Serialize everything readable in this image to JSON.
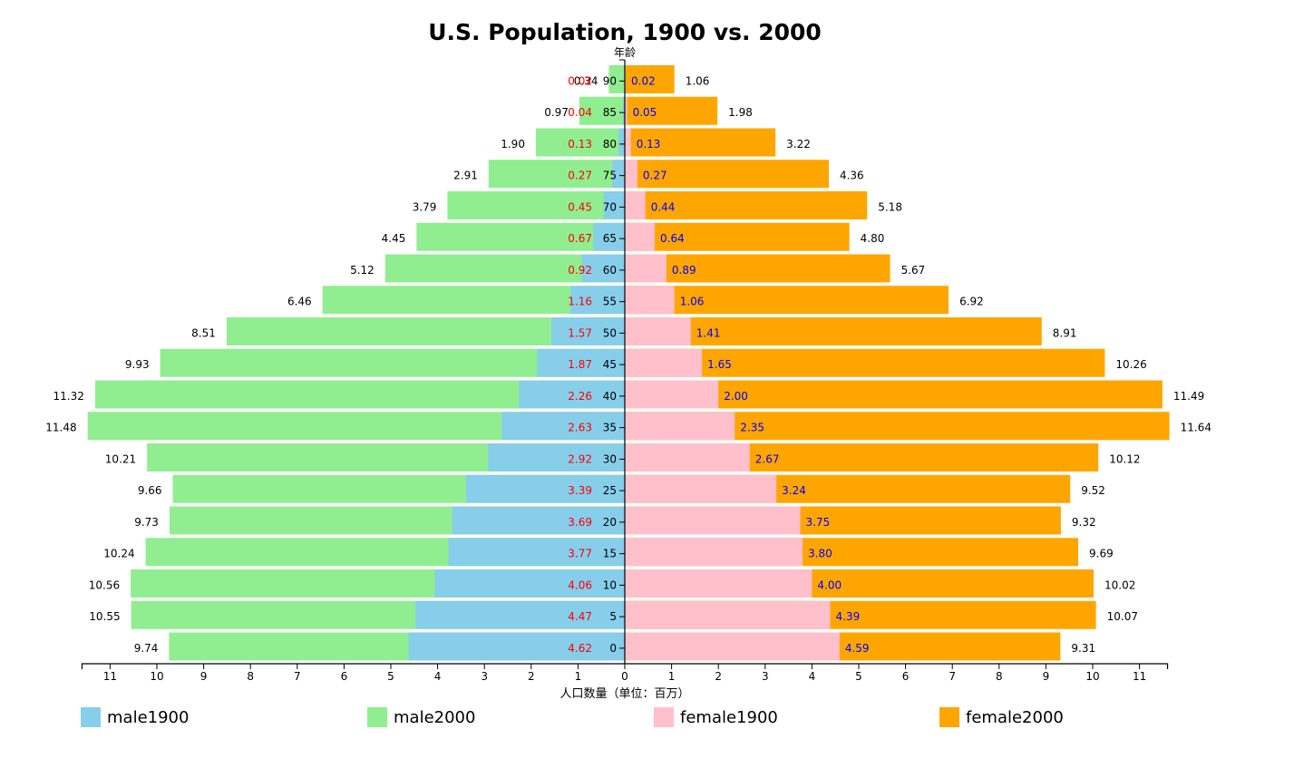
{
  "chart_data": {
    "type": "bar",
    "subtype": "population-pyramid",
    "title": "U.S. Population, 1900 vs. 2000",
    "ylabel": "年龄",
    "xlabel": "人口数量（单位：百万）",
    "categories": [
      "90",
      "85",
      "80",
      "75",
      "70",
      "65",
      "60",
      "55",
      "50",
      "45",
      "40",
      "35",
      "30",
      "25",
      "20",
      "15",
      "10",
      "5",
      "0"
    ],
    "x_ticks": [
      "11",
      "10",
      "9",
      "8",
      "7",
      "6",
      "5",
      "4",
      "3",
      "2",
      "1",
      "0",
      "1",
      "2",
      "3",
      "4",
      "5",
      "6",
      "7",
      "8",
      "9",
      "10",
      "11"
    ],
    "xlim": [
      -11.6,
      11.6
    ],
    "series": [
      {
        "name": "male1900",
        "color": "#87CEEB",
        "values": [
          0.02,
          0.04,
          0.13,
          0.27,
          0.45,
          0.67,
          0.92,
          1.16,
          1.57,
          1.87,
          2.26,
          2.63,
          2.92,
          3.39,
          3.69,
          3.77,
          4.06,
          4.47,
          4.62
        ],
        "labels": [
          "0.02",
          "0.04",
          "0.13",
          "0.27",
          "0.45",
          "0.67",
          "0.92",
          "1.16",
          "1.57",
          "1.87",
          "2.26",
          "2.63",
          "2.92",
          "3.39",
          "3.69",
          "3.77",
          "4.06",
          "4.47",
          "4.62"
        ],
        "label_color": "#FF0000"
      },
      {
        "name": "male2000",
        "color": "#90EE90",
        "values": [
          0.34,
          0.97,
          1.9,
          2.91,
          3.79,
          4.45,
          5.12,
          6.46,
          8.51,
          9.93,
          11.32,
          11.48,
          10.21,
          9.66,
          9.73,
          10.24,
          10.56,
          10.55,
          9.74
        ],
        "labels": [
          "0.34",
          "0.97",
          "1.90",
          "2.91",
          "3.79",
          "4.45",
          "5.12",
          "6.46",
          "8.51",
          "9.93",
          "11.32",
          "11.48",
          "10.21",
          "9.66",
          "9.73",
          "10.24",
          "10.56",
          "10.55",
          "9.74"
        ],
        "label_color": "#000000"
      },
      {
        "name": "female1900",
        "color": "#FFC0CB",
        "values": [
          0.02,
          0.05,
          0.13,
          0.27,
          0.44,
          0.64,
          0.89,
          1.06,
          1.41,
          1.65,
          2.0,
          2.35,
          2.67,
          3.24,
          3.75,
          3.8,
          4.0,
          4.39,
          4.59
        ],
        "labels": [
          "0.02",
          "0.05",
          "0.13",
          "0.27",
          "0.44",
          "0.64",
          "0.89",
          "1.06",
          "1.41",
          "1.65",
          "2.00",
          "2.35",
          "2.67",
          "3.24",
          "3.75",
          "3.80",
          "4.00",
          "4.39",
          "4.59"
        ],
        "label_color": "#0000FF"
      },
      {
        "name": "female2000",
        "color": "#FFA500",
        "values": [
          1.06,
          1.98,
          3.22,
          4.36,
          5.18,
          4.8,
          5.67,
          6.92,
          8.91,
          10.26,
          11.49,
          11.64,
          10.12,
          9.52,
          9.32,
          9.69,
          10.02,
          10.07,
          9.31
        ],
        "labels": [
          "1.06",
          "1.98",
          "3.22",
          "4.36",
          "5.18",
          "4.80",
          "5.67",
          "6.92",
          "8.91",
          "10.26",
          "11.49",
          "11.64",
          "10.12",
          "9.52",
          "9.32",
          "9.69",
          "10.02",
          "10.07",
          "9.31"
        ],
        "label_color": "#000000"
      }
    ],
    "legend": [
      "male1900",
      "male2000",
      "female1900",
      "female2000"
    ],
    "legend_position": "bottom",
    "grid": false
  }
}
